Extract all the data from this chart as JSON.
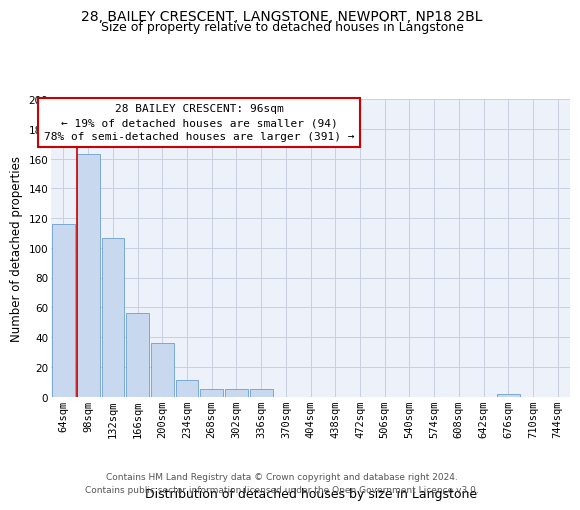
{
  "title": "28, BAILEY CRESCENT, LANGSTONE, NEWPORT, NP18 2BL",
  "subtitle": "Size of property relative to detached houses in Langstone",
  "xlabel": "Distribution of detached houses by size in Langstone",
  "ylabel": "Number of detached properties",
  "categories": [
    "64sqm",
    "98sqm",
    "132sqm",
    "166sqm",
    "200sqm",
    "234sqm",
    "268sqm",
    "302sqm",
    "336sqm",
    "370sqm",
    "404sqm",
    "438sqm",
    "472sqm",
    "506sqm",
    "540sqm",
    "574sqm",
    "608sqm",
    "642sqm",
    "676sqm",
    "710sqm",
    "744sqm"
  ],
  "bar_values": [
    116,
    163,
    107,
    56,
    36,
    11,
    5,
    5,
    5,
    0,
    0,
    0,
    0,
    0,
    0,
    0,
    0,
    0,
    2,
    0,
    0
  ],
  "bar_color": "#c8d8ee",
  "bar_edge_color": "#6a9fd0",
  "grid_color": "#c8d0e0",
  "bg_color": "#edf2fa",
  "marker_color": "#cc0000",
  "annotation_box_text": "28 BAILEY CRESCENT: 96sqm\n← 19% of detached houses are smaller (94)\n78% of semi-detached houses are larger (391) →",
  "annotation_box_edge_color": "#cc0000",
  "footer_text": "Contains HM Land Registry data © Crown copyright and database right 2024.\nContains public sector information licensed under the Open Government Licence v3.0.",
  "ylim": [
    0,
    200
  ],
  "yticks": [
    0,
    20,
    40,
    60,
    80,
    100,
    120,
    140,
    160,
    180,
    200
  ],
  "title_fontsize": 10,
  "subtitle_fontsize": 9,
  "ylabel_fontsize": 8.5,
  "xlabel_fontsize": 9,
  "tick_fontsize": 7.5,
  "annotation_fontsize": 8,
  "footer_fontsize": 6.5
}
